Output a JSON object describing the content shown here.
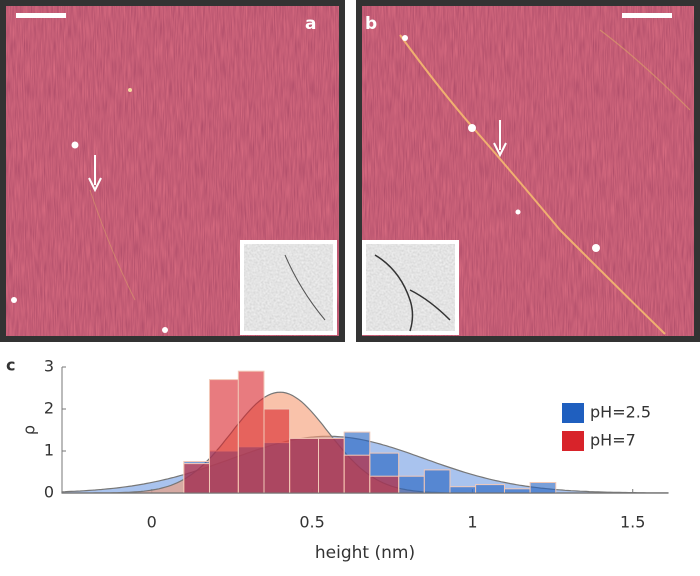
{
  "panel_labels": [
    "a",
    "b"
  ],
  "chart_data": {
    "type": "histogram",
    "panel_label": "c",
    "xlabel": "height (nm)",
    "ylabel": "ρ",
    "bins": [
      0.1,
      0.18,
      0.27,
      0.35,
      0.43,
      0.52,
      0.6,
      0.68,
      0.77,
      0.85,
      0.93,
      1.01,
      1.1,
      1.18,
      1.26
    ],
    "series": [
      {
        "name": "pH=2.5",
        "color": "#1f5fbf",
        "fit_color": "#6f9be3",
        "values": [
          0.75,
          1.0,
          1.1,
          1.2,
          1.3,
          1.3,
          1.45,
          0.95,
          0.4,
          0.55,
          0.15,
          0.2,
          0.1,
          0.25
        ],
        "fit": {
          "peak": 1.35,
          "mean": 0.55,
          "sd": 0.3
        }
      },
      {
        "name": "pH=7",
        "color": "#d8232a",
        "fit_color": "#f59a72",
        "values": [
          0.7,
          2.7,
          2.9,
          2.0,
          1.3,
          1.3,
          0.9,
          0.4,
          0,
          0,
          0,
          0,
          0,
          0
        ],
        "fit": {
          "peak": 2.4,
          "mean": 0.4,
          "sd": 0.15
        }
      }
    ],
    "xlim": [
      -0.28,
      1.61
    ],
    "ylim": [
      0,
      3
    ],
    "xticks": [
      0,
      0.5,
      1,
      1.5
    ],
    "yticks": [
      0,
      1,
      2,
      3
    ],
    "legend": "right"
  }
}
